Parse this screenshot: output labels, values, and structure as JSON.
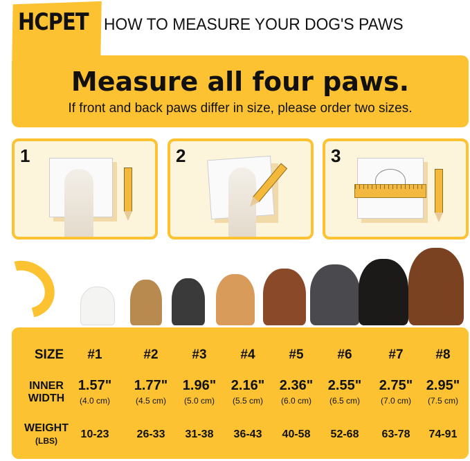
{
  "brand": {
    "logo": "HCPET",
    "title": "HOW TO MEASURE YOUR DOG'S PAWS",
    "accent": "#fcc232"
  },
  "banner": {
    "heading": "Measure all four paws.",
    "subheading": "If front and back paws differ in size, please order two sizes."
  },
  "steps": [
    {
      "number": "1"
    },
    {
      "number": "2"
    },
    {
      "number": "3"
    }
  ],
  "table": {
    "size_label": "SIZE",
    "width_label": [
      "INNER",
      "WIDTH"
    ],
    "weight_label": "WEIGHT",
    "weight_unit": "(LBS)",
    "sizes": [
      "#1",
      "#2",
      "#3",
      "#4",
      "#5",
      "#6",
      "#7",
      "#8"
    ],
    "width_in": [
      "1.57\"",
      "1.77\"",
      "1.96\"",
      "2.16\"",
      "2.36\"",
      "2.55\"",
      "2.75\"",
      "2.95\""
    ],
    "width_cm": [
      "(4.0 cm)",
      "(4.5 cm)",
      "(5.0 cm)",
      "(5.5 cm)",
      "(6.0 cm)",
      "(6.5 cm)",
      "(7.0 cm)",
      "(7.5 cm)"
    ],
    "weight": [
      "10-23",
      "26-33",
      "31-38",
      "36-43",
      "40-58",
      "52-68",
      "63-78",
      "74-91"
    ]
  }
}
